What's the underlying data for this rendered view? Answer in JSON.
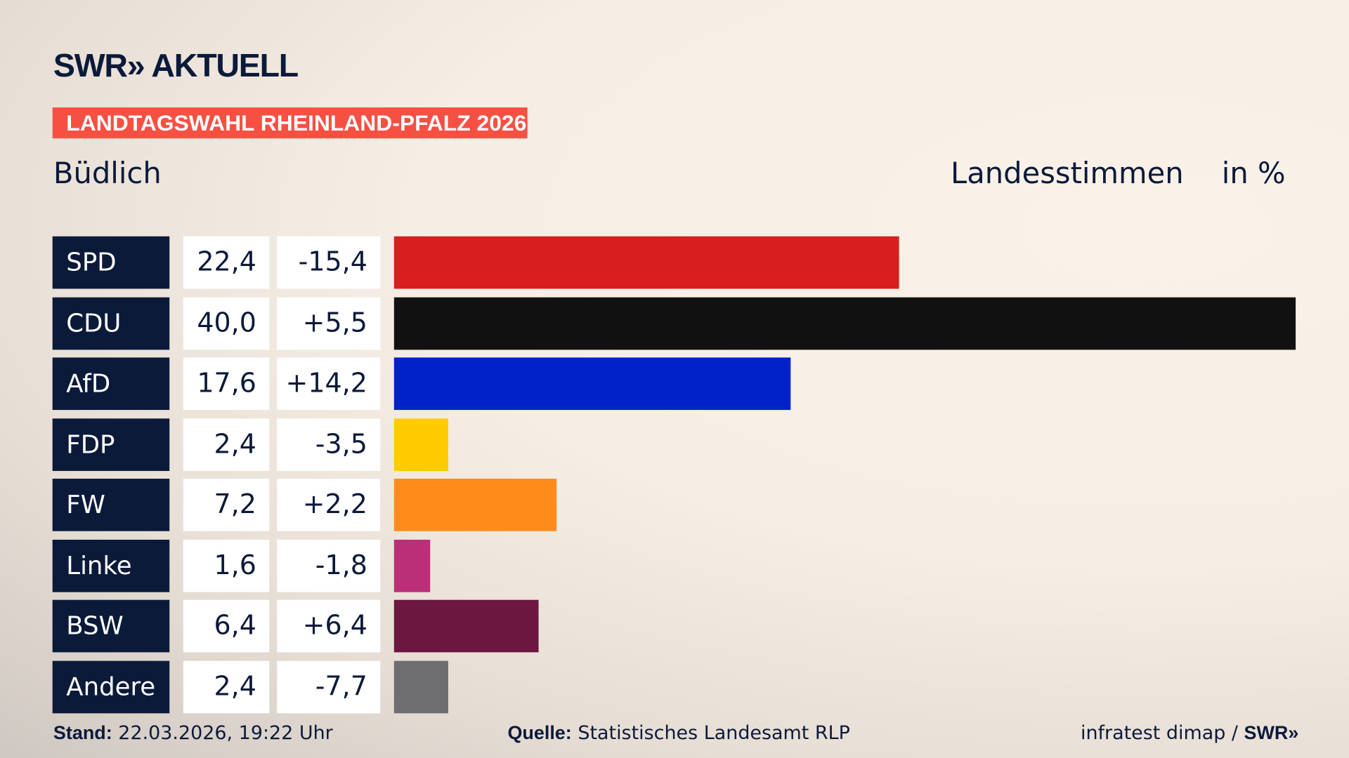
{
  "header": {
    "logo": "SWR» AKTUELL",
    "badge": "LANDTAGSWAHL RHEINLAND-PFALZ 2026",
    "place": "Büdlich",
    "vote_type": "Landesstimmen",
    "unit": "in %"
  },
  "chart_data": {
    "type": "bar",
    "orientation": "horizontal",
    "xlim": [
      0,
      40
    ],
    "categories": [
      "SPD",
      "CDU",
      "AfD",
      "FDP",
      "FW",
      "Linke",
      "BSW",
      "Andere"
    ],
    "values": [
      22.4,
      40.0,
      17.6,
      2.4,
      7.2,
      1.6,
      6.4,
      2.4
    ],
    "value_labels": [
      "22,4",
      "40,0",
      "17,6",
      "2,4",
      "7,2",
      "1,6",
      "6,4",
      "2,4"
    ],
    "diff_labels": [
      "-15,4",
      "+5,5",
      "+14,2",
      "-3,5",
      "+2,2",
      "-1,8",
      "+6,4",
      "-7,7"
    ],
    "colors": [
      "#d81e1e",
      "#111111",
      "#0022c8",
      "#ffcc00",
      "#ff8c1a",
      "#bb2f78",
      "#6b173f",
      "#6e6e70"
    ]
  },
  "footer": {
    "stand_label": "Stand:",
    "stand_value": "22.03.2026, 19:22 Uhr",
    "source_label": "Quelle:",
    "source_value": "Statistisches Landesamt RLP",
    "credit": "infratest dimap / ",
    "credit_logo": "SWR»"
  }
}
